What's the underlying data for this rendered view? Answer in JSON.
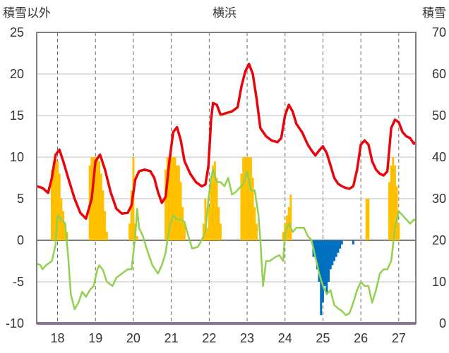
{
  "chart_data": {
    "type": "bar+line",
    "title": "横浜",
    "left_axis_label": "積雪以外",
    "right_axis_label": "積雪",
    "left_ylim": [
      -10,
      25
    ],
    "right_ylim": [
      0,
      70
    ],
    "left_ticks": [
      25,
      20,
      15,
      10,
      5,
      0,
      -5,
      -10
    ],
    "right_ticks": [
      70,
      60,
      50,
      40,
      30,
      20,
      10,
      0
    ],
    "xlim": [
      17.45,
      27.45
    ],
    "x_ticks": [
      "18",
      "19",
      "20",
      "21",
      "22",
      "23",
      "24",
      "25",
      "26",
      "27"
    ],
    "grid": true,
    "colors": {
      "red": "#e8060c",
      "green": "#92d050",
      "orange_bar": "#ffc000",
      "blue_bar": "#0070c0",
      "purple": "#7030a0",
      "grid": "#666666",
      "frame": "#7f7f7f"
    },
    "series_red": [
      [
        17.45,
        6.5
      ],
      [
        17.6,
        6.3
      ],
      [
        17.75,
        5.7
      ],
      [
        17.85,
        7.5
      ],
      [
        17.95,
        10.3
      ],
      [
        18.05,
        10.9
      ],
      [
        18.15,
        9.5
      ],
      [
        18.3,
        7.2
      ],
      [
        18.45,
        5.0
      ],
      [
        18.6,
        3.3
      ],
      [
        18.75,
        2.6
      ],
      [
        18.9,
        5.0
      ],
      [
        19.0,
        9.5
      ],
      [
        19.12,
        10.3
      ],
      [
        19.25,
        8.5
      ],
      [
        19.4,
        5.8
      ],
      [
        19.55,
        3.8
      ],
      [
        19.7,
        3.2
      ],
      [
        19.85,
        3.3
      ],
      [
        19.95,
        4.2
      ],
      [
        20.05,
        7.3
      ],
      [
        20.15,
        8.3
      ],
      [
        20.3,
        8.5
      ],
      [
        20.45,
        8.3
      ],
      [
        20.55,
        7.5
      ],
      [
        20.65,
        5.8
      ],
      [
        20.75,
        4.5
      ],
      [
        20.85,
        5.2
      ],
      [
        20.95,
        9.5
      ],
      [
        21.05,
        13.0
      ],
      [
        21.15,
        13.6
      ],
      [
        21.25,
        12.0
      ],
      [
        21.35,
        9.5
      ],
      [
        21.5,
        8.0
      ],
      [
        21.65,
        7.0
      ],
      [
        21.8,
        6.5
      ],
      [
        21.9,
        6.7
      ],
      [
        21.98,
        9.0
      ],
      [
        22.05,
        14.5
      ],
      [
        22.1,
        16.5
      ],
      [
        22.2,
        16.3
      ],
      [
        22.3,
        15.1
      ],
      [
        22.45,
        15.3
      ],
      [
        22.6,
        15.5
      ],
      [
        22.75,
        16.0
      ],
      [
        22.85,
        18.5
      ],
      [
        22.95,
        20.3
      ],
      [
        23.05,
        21.2
      ],
      [
        23.15,
        20.0
      ],
      [
        23.25,
        17.0
      ],
      [
        23.35,
        13.5
      ],
      [
        23.5,
        12.5
      ],
      [
        23.65,
        12.0
      ],
      [
        23.8,
        11.8
      ],
      [
        23.9,
        12.3
      ],
      [
        24.0,
        15.0
      ],
      [
        24.1,
        16.3
      ],
      [
        24.2,
        15.5
      ],
      [
        24.3,
        14.0
      ],
      [
        24.45,
        13.0
      ],
      [
        24.6,
        11.5
      ],
      [
        24.7,
        10.8
      ],
      [
        24.8,
        10.2
      ],
      [
        24.9,
        10.8
      ],
      [
        25.0,
        11.3
      ],
      [
        25.1,
        10.5
      ],
      [
        25.2,
        9.0
      ],
      [
        25.3,
        7.5
      ],
      [
        25.4,
        6.8
      ],
      [
        25.5,
        6.5
      ],
      [
        25.6,
        6.3
      ],
      [
        25.7,
        6.2
      ],
      [
        25.8,
        6.5
      ],
      [
        25.9,
        8.5
      ],
      [
        26.0,
        11.5
      ],
      [
        26.1,
        12.0
      ],
      [
        26.2,
        11.5
      ],
      [
        26.3,
        9.5
      ],
      [
        26.4,
        8.5
      ],
      [
        26.5,
        8.0
      ],
      [
        26.6,
        7.8
      ],
      [
        26.7,
        8.3
      ],
      [
        26.8,
        13.5
      ],
      [
        26.9,
        14.5
      ],
      [
        27.0,
        14.2
      ],
      [
        27.1,
        13.0
      ],
      [
        27.2,
        12.5
      ],
      [
        27.3,
        12.3
      ],
      [
        27.4,
        11.6
      ],
      [
        27.45,
        11.8
      ]
    ],
    "series_green": [
      [
        17.45,
        -2.8
      ],
      [
        17.55,
        -3.0
      ],
      [
        17.6,
        -3.5
      ],
      [
        17.7,
        -3.0
      ],
      [
        17.85,
        -2.5
      ],
      [
        17.95,
        -0.5
      ],
      [
        18.0,
        3.0
      ],
      [
        18.1,
        2.5
      ],
      [
        18.2,
        2.0
      ],
      [
        18.28,
        -2.0
      ],
      [
        18.35,
        -6.5
      ],
      [
        18.45,
        -8.3
      ],
      [
        18.55,
        -7.5
      ],
      [
        18.65,
        -6.2
      ],
      [
        18.75,
        -6.8
      ],
      [
        18.85,
        -6.0
      ],
      [
        18.95,
        -5.5
      ],
      [
        19.05,
        -3.5
      ],
      [
        19.1,
        -3.0
      ],
      [
        19.2,
        -3.6
      ],
      [
        19.3,
        -5.0
      ],
      [
        19.45,
        -5.5
      ],
      [
        19.55,
        -4.5
      ],
      [
        19.7,
        -4.0
      ],
      [
        19.85,
        -3.5
      ],
      [
        19.95,
        -3.5
      ],
      [
        20.05,
        0.5
      ],
      [
        20.1,
        3.8
      ],
      [
        20.15,
        1.5
      ],
      [
        20.25,
        0.5
      ],
      [
        20.35,
        -1.0
      ],
      [
        20.5,
        -3.0
      ],
      [
        20.65,
        -4.0
      ],
      [
        20.75,
        -3.0
      ],
      [
        20.85,
        -1.5
      ],
      [
        20.95,
        1.5
      ],
      [
        21.05,
        3.0
      ],
      [
        21.15,
        2.5
      ],
      [
        21.25,
        2.5
      ],
      [
        21.35,
        2.2
      ],
      [
        21.45,
        0.5
      ],
      [
        21.55,
        -1.0
      ],
      [
        21.7,
        -0.8
      ],
      [
        21.8,
        0.0
      ],
      [
        21.9,
        1.0
      ],
      [
        21.98,
        5.0
      ],
      [
        22.05,
        7.5
      ],
      [
        22.1,
        8.5
      ],
      [
        22.2,
        7.0
      ],
      [
        22.3,
        7.0
      ],
      [
        22.4,
        6.5
      ],
      [
        22.5,
        7.5
      ],
      [
        22.6,
        5.5
      ],
      [
        22.7,
        5.8
      ],
      [
        22.8,
        6.3
      ],
      [
        22.9,
        6.8
      ],
      [
        23.0,
        8.3
      ],
      [
        23.1,
        6.0
      ],
      [
        23.2,
        6.0
      ],
      [
        23.3,
        3.0
      ],
      [
        23.35,
        0.0
      ],
      [
        23.42,
        -5.5
      ],
      [
        23.5,
        -2.5
      ],
      [
        23.6,
        -2.5
      ],
      [
        23.75,
        -2.0
      ],
      [
        23.85,
        -1.8
      ],
      [
        23.95,
        -2.5
      ],
      [
        24.0,
        0.8
      ],
      [
        24.05,
        1.5
      ],
      [
        24.1,
        2.0
      ],
      [
        24.2,
        1.0
      ],
      [
        24.3,
        1.5
      ],
      [
        24.4,
        1.5
      ],
      [
        24.5,
        1.5
      ],
      [
        24.6,
        0.5
      ],
      [
        24.7,
        0.0
      ],
      [
        24.8,
        -2.0
      ],
      [
        24.9,
        -4.0
      ],
      [
        25.0,
        -5.5
      ],
      [
        25.1,
        -6.5
      ],
      [
        25.2,
        -6.0
      ],
      [
        25.3,
        -7.8
      ],
      [
        25.4,
        -8.2
      ],
      [
        25.5,
        -8.5
      ],
      [
        25.6,
        -9.0
      ],
      [
        25.7,
        -8.8
      ],
      [
        25.8,
        -7.5
      ],
      [
        25.9,
        -6.0
      ],
      [
        26.0,
        -5.0
      ],
      [
        26.1,
        -5.5
      ],
      [
        26.2,
        -5.5
      ],
      [
        26.3,
        -7.5
      ],
      [
        26.4,
        -6.0
      ],
      [
        26.5,
        -4.0
      ],
      [
        26.6,
        -3.5
      ],
      [
        26.7,
        -3.5
      ],
      [
        26.8,
        -2.5
      ],
      [
        26.9,
        1.5
      ],
      [
        27.0,
        3.5
      ],
      [
        27.1,
        3.0
      ],
      [
        27.2,
        2.5
      ],
      [
        27.3,
        2.0
      ],
      [
        27.4,
        2.5
      ],
      [
        27.45,
        2.3
      ]
    ],
    "series_purple": [
      [
        17.45,
        -10.0
      ],
      [
        27.45,
        -10.0
      ]
    ],
    "bars_orange": [
      [
        17.85,
        37
      ],
      [
        17.9,
        39
      ],
      [
        17.95,
        40
      ],
      [
        18.0,
        39
      ],
      [
        18.05,
        36
      ],
      [
        18.1,
        30
      ],
      [
        18.15,
        27
      ],
      [
        18.2,
        24
      ],
      [
        18.25,
        22
      ],
      [
        18.85,
        38
      ],
      [
        18.9,
        40
      ],
      [
        18.95,
        40
      ],
      [
        19.0,
        40
      ],
      [
        19.05,
        40
      ],
      [
        19.1,
        39
      ],
      [
        19.15,
        36
      ],
      [
        19.2,
        32
      ],
      [
        19.25,
        27
      ],
      [
        19.3,
        22
      ],
      [
        19.9,
        24
      ],
      [
        19.95,
        32
      ],
      [
        20.0,
        40
      ],
      [
        20.05,
        24
      ],
      [
        20.1,
        21
      ],
      [
        20.85,
        37
      ],
      [
        20.9,
        40
      ],
      [
        20.95,
        40
      ],
      [
        21.0,
        40
      ],
      [
        21.05,
        40
      ],
      [
        21.1,
        40
      ],
      [
        21.15,
        38
      ],
      [
        21.2,
        38
      ],
      [
        21.25,
        34
      ],
      [
        21.3,
        28
      ],
      [
        21.35,
        24
      ],
      [
        21.85,
        24
      ],
      [
        21.9,
        30
      ],
      [
        21.95,
        23
      ],
      [
        22.0,
        28
      ],
      [
        22.05,
        34
      ],
      [
        22.1,
        38
      ],
      [
        22.15,
        39
      ],
      [
        22.2,
        35
      ],
      [
        22.25,
        28
      ],
      [
        22.3,
        24
      ],
      [
        22.85,
        36
      ],
      [
        22.9,
        40
      ],
      [
        22.95,
        40
      ],
      [
        23.0,
        40
      ],
      [
        23.05,
        40
      ],
      [
        23.1,
        40
      ],
      [
        23.15,
        35
      ],
      [
        23.2,
        28
      ],
      [
        23.25,
        24
      ],
      [
        23.95,
        22
      ],
      [
        24.0,
        24
      ],
      [
        24.05,
        26
      ],
      [
        24.1,
        28
      ],
      [
        24.15,
        31
      ],
      [
        26.15,
        30
      ],
      [
        26.2,
        30
      ],
      [
        26.75,
        34
      ],
      [
        26.8,
        38
      ],
      [
        26.85,
        40
      ],
      [
        26.9,
        38
      ],
      [
        26.95,
        33
      ],
      [
        27.0,
        24
      ]
    ],
    "bars_blue": [
      [
        24.75,
        -2.0
      ],
      [
        24.8,
        -2.0
      ],
      [
        24.85,
        -3.5
      ],
      [
        24.9,
        -5.0
      ],
      [
        24.95,
        -9.0
      ],
      [
        25.0,
        -7.5
      ],
      [
        25.05,
        -5.5
      ],
      [
        25.1,
        -6.5
      ],
      [
        25.15,
        -5.0
      ],
      [
        25.2,
        -3.5
      ],
      [
        25.25,
        -3.0
      ],
      [
        25.3,
        -2.5
      ],
      [
        25.35,
        -2.0
      ],
      [
        25.4,
        -1.5
      ],
      [
        25.45,
        -1.0
      ],
      [
        25.5,
        -0.5
      ],
      [
        25.8,
        -0.5
      ]
    ]
  }
}
